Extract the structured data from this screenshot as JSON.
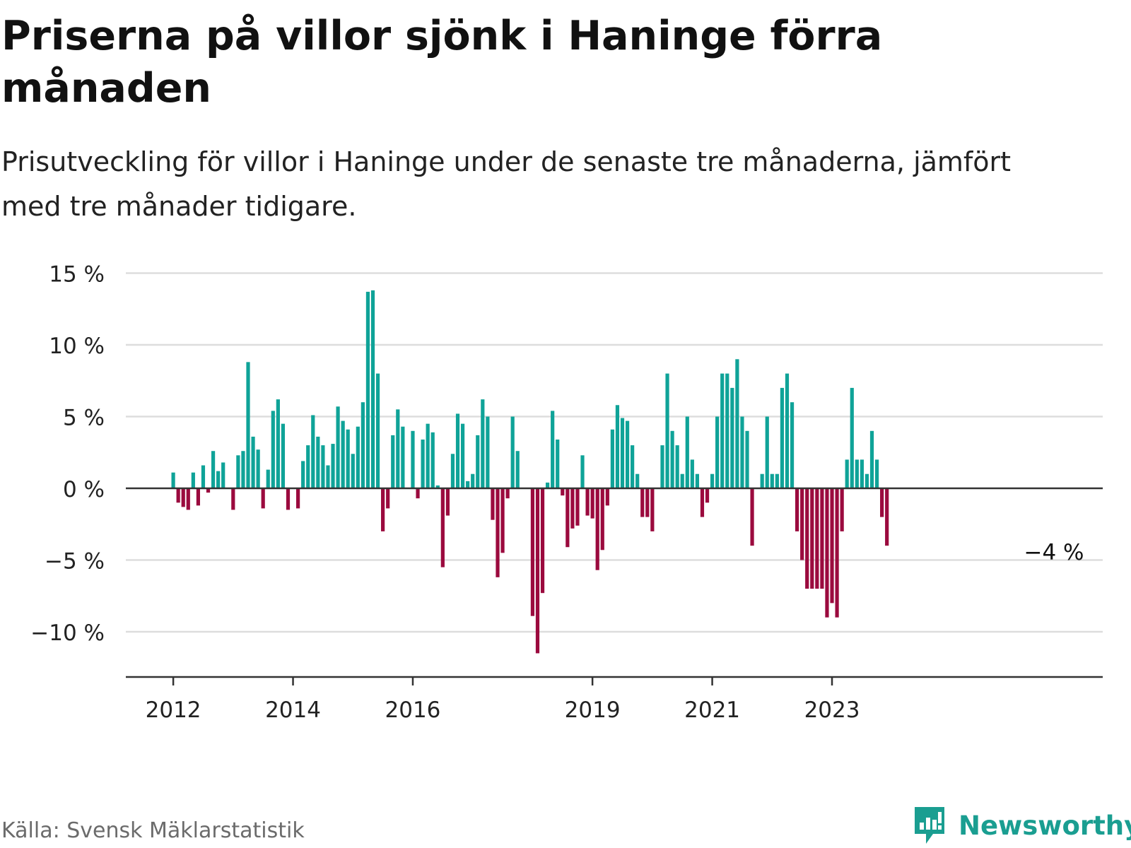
{
  "title": "Priserna på villor sjönk i Haninge förra månaden",
  "subtitle": "Prisutveckling för villor i Haninge under de senaste tre månaderna, jämfört med tre månader tidigare.",
  "source": "Källa: Svensk Mäklarstatistik",
  "brand": {
    "name": "Newsworthy",
    "icon": "newsworthy-logo-icon",
    "color": "#1a9e91"
  },
  "colors": {
    "positive": "#0fa398",
    "negative": "#9b0a3e",
    "grid": "#dddddd",
    "axis": "#333333",
    "text": "#222222"
  },
  "chart_data": {
    "type": "bar",
    "title": "Priserna på villor sjönk i Haninge förra månaden",
    "xlabel": "",
    "ylabel": "",
    "unit": "%",
    "ylim": [
      -13,
      15
    ],
    "yticks": [
      15,
      10,
      5,
      0,
      -5,
      -10
    ],
    "ytick_labels": [
      "15 %",
      "10 %",
      "5 %",
      "0 %",
      "−5 %",
      "−10 %"
    ],
    "xticks": [
      {
        "label": "2012",
        "year": 2012,
        "month": 1
      },
      {
        "label": "2014",
        "year": 2014,
        "month": 1
      },
      {
        "label": "2016",
        "year": 2016,
        "month": 1
      },
      {
        "label": "2019",
        "year": 2019,
        "month": 1
      },
      {
        "label": "2021",
        "year": 2021,
        "month": 1
      },
      {
        "label": "2023",
        "year": 2023,
        "month": 1
      }
    ],
    "start": {
      "year": 2012,
      "month": 1
    },
    "end_label": "−4 %",
    "series": [
      {
        "name": "Prisutveckling",
        "values": [
          1.1,
          -1.0,
          -1.3,
          -1.5,
          1.1,
          -1.2,
          1.6,
          -0.3,
          2.6,
          1.2,
          1.8,
          null,
          -1.5,
          2.3,
          2.6,
          8.8,
          3.6,
          2.7,
          -1.4,
          1.3,
          5.4,
          6.2,
          4.5,
          -1.5,
          null,
          -1.4,
          1.9,
          3.0,
          5.1,
          3.6,
          3.0,
          1.6,
          3.1,
          5.7,
          4.7,
          4.1,
          2.4,
          4.3,
          6.0,
          13.7,
          13.8,
          8.0,
          -3.0,
          -1.4,
          3.7,
          5.5,
          4.3,
          null,
          4.0,
          -0.7,
          3.4,
          4.5,
          3.9,
          0.2,
          -5.5,
          -1.9,
          2.4,
          5.2,
          4.5,
          0.5,
          1.0,
          3.7,
          6.2,
          5.0,
          -2.2,
          -6.2,
          -4.5,
          -0.7,
          5.0,
          2.6,
          null,
          null,
          -8.9,
          -11.5,
          -7.3,
          0.4,
          5.4,
          3.4,
          -0.5,
          -4.1,
          -2.8,
          -2.6,
          2.3,
          -1.9,
          -2.1,
          -5.7,
          -4.3,
          -1.2,
          4.1,
          5.8,
          4.9,
          4.7,
          3.0,
          1.0,
          -2.0,
          -2.0,
          -3.0,
          null,
          3.0,
          8.0,
          4.0,
          3.0,
          1.0,
          5.0,
          2.0,
          1.0,
          -2.0,
          -1.0,
          1.0,
          5.0,
          8.0,
          8.0,
          7.0,
          9.0,
          5.0,
          4.0,
          -4.0,
          null,
          1.0,
          5.0,
          1.0,
          1.0,
          7.0,
          8.0,
          6.0,
          -3.0,
          -5.0,
          -7.0,
          -7.0,
          -7.0,
          -7.0,
          -9.0,
          -8.0,
          -9.0,
          -3.0,
          2.0,
          7.0,
          2.0,
          2.0,
          1.0,
          4.0,
          2.0,
          -2.0,
          -4.0
        ]
      }
    ]
  }
}
